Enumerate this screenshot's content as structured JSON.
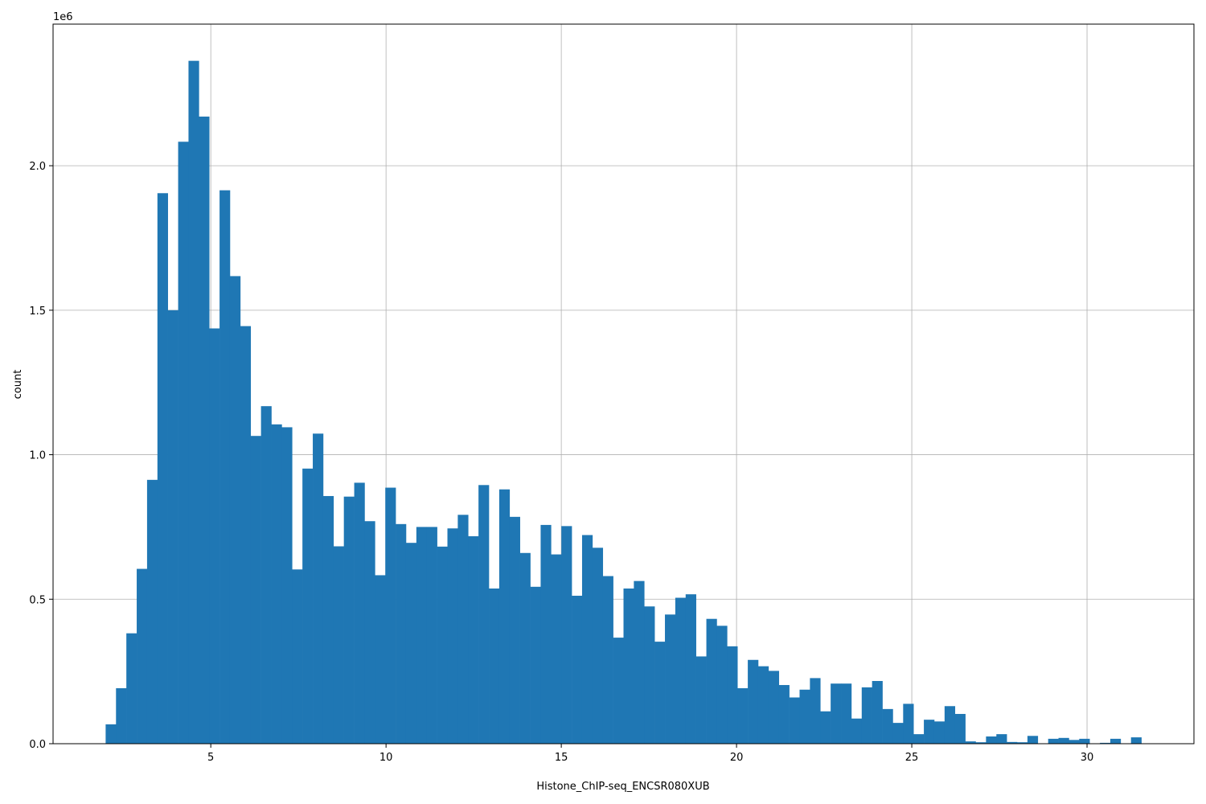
{
  "chart_data": {
    "type": "bar",
    "histogram": true,
    "xlabel": "Histone_ChIP-seq_ENCSR080XUB",
    "ylabel": "count",
    "offset_text": "1e6",
    "xlim": [
      0.5,
      33.05
    ],
    "ylim": [
      0,
      2490000
    ],
    "x_ticks": [
      5,
      10,
      15,
      20,
      25,
      30
    ],
    "x_tick_labels": [
      "5",
      "10",
      "15",
      "20",
      "25",
      "30"
    ],
    "y_ticks": [
      0,
      500000,
      1000000,
      1500000,
      2000000
    ],
    "y_tick_labels": [
      "0.0",
      "0.5",
      "1.0",
      "1.5",
      "2.0"
    ],
    "grid": true,
    "color": "#1f77b4",
    "bin_start": 2.0,
    "bin_width": 0.2955,
    "values": [
      67000,
      192000,
      382000,
      605000,
      913000,
      1905000,
      1500000,
      2083000,
      2363000,
      2170000,
      1437000,
      1915000,
      1618000,
      1445000,
      1065000,
      1168000,
      1105000,
      1095000,
      603000,
      952000,
      1073000,
      857000,
      683000,
      855000,
      903000,
      770000,
      583000,
      886000,
      760000,
      695000,
      750000,
      750000,
      682000,
      745000,
      792000,
      718000,
      895000,
      537000,
      880000,
      785000,
      660000,
      543000,
      757000,
      655000,
      753000,
      512000,
      722000,
      678000,
      580000,
      367000,
      537000,
      563000,
      475000,
      353000,
      447000,
      505000,
      517000,
      302000,
      432000,
      408000,
      337000,
      192000,
      290000,
      268000,
      252000,
      203000,
      160000,
      187000,
      227000,
      112000,
      208000,
      208000,
      87000,
      195000,
      217000,
      120000,
      72000,
      138000,
      33000,
      83000,
      77000,
      130000,
      103000,
      8000,
      5000,
      25000,
      33000,
      6000,
      5000,
      27000,
      0,
      17000,
      20000,
      13000,
      17000,
      0,
      3000,
      17000,
      0,
      22000
    ]
  }
}
